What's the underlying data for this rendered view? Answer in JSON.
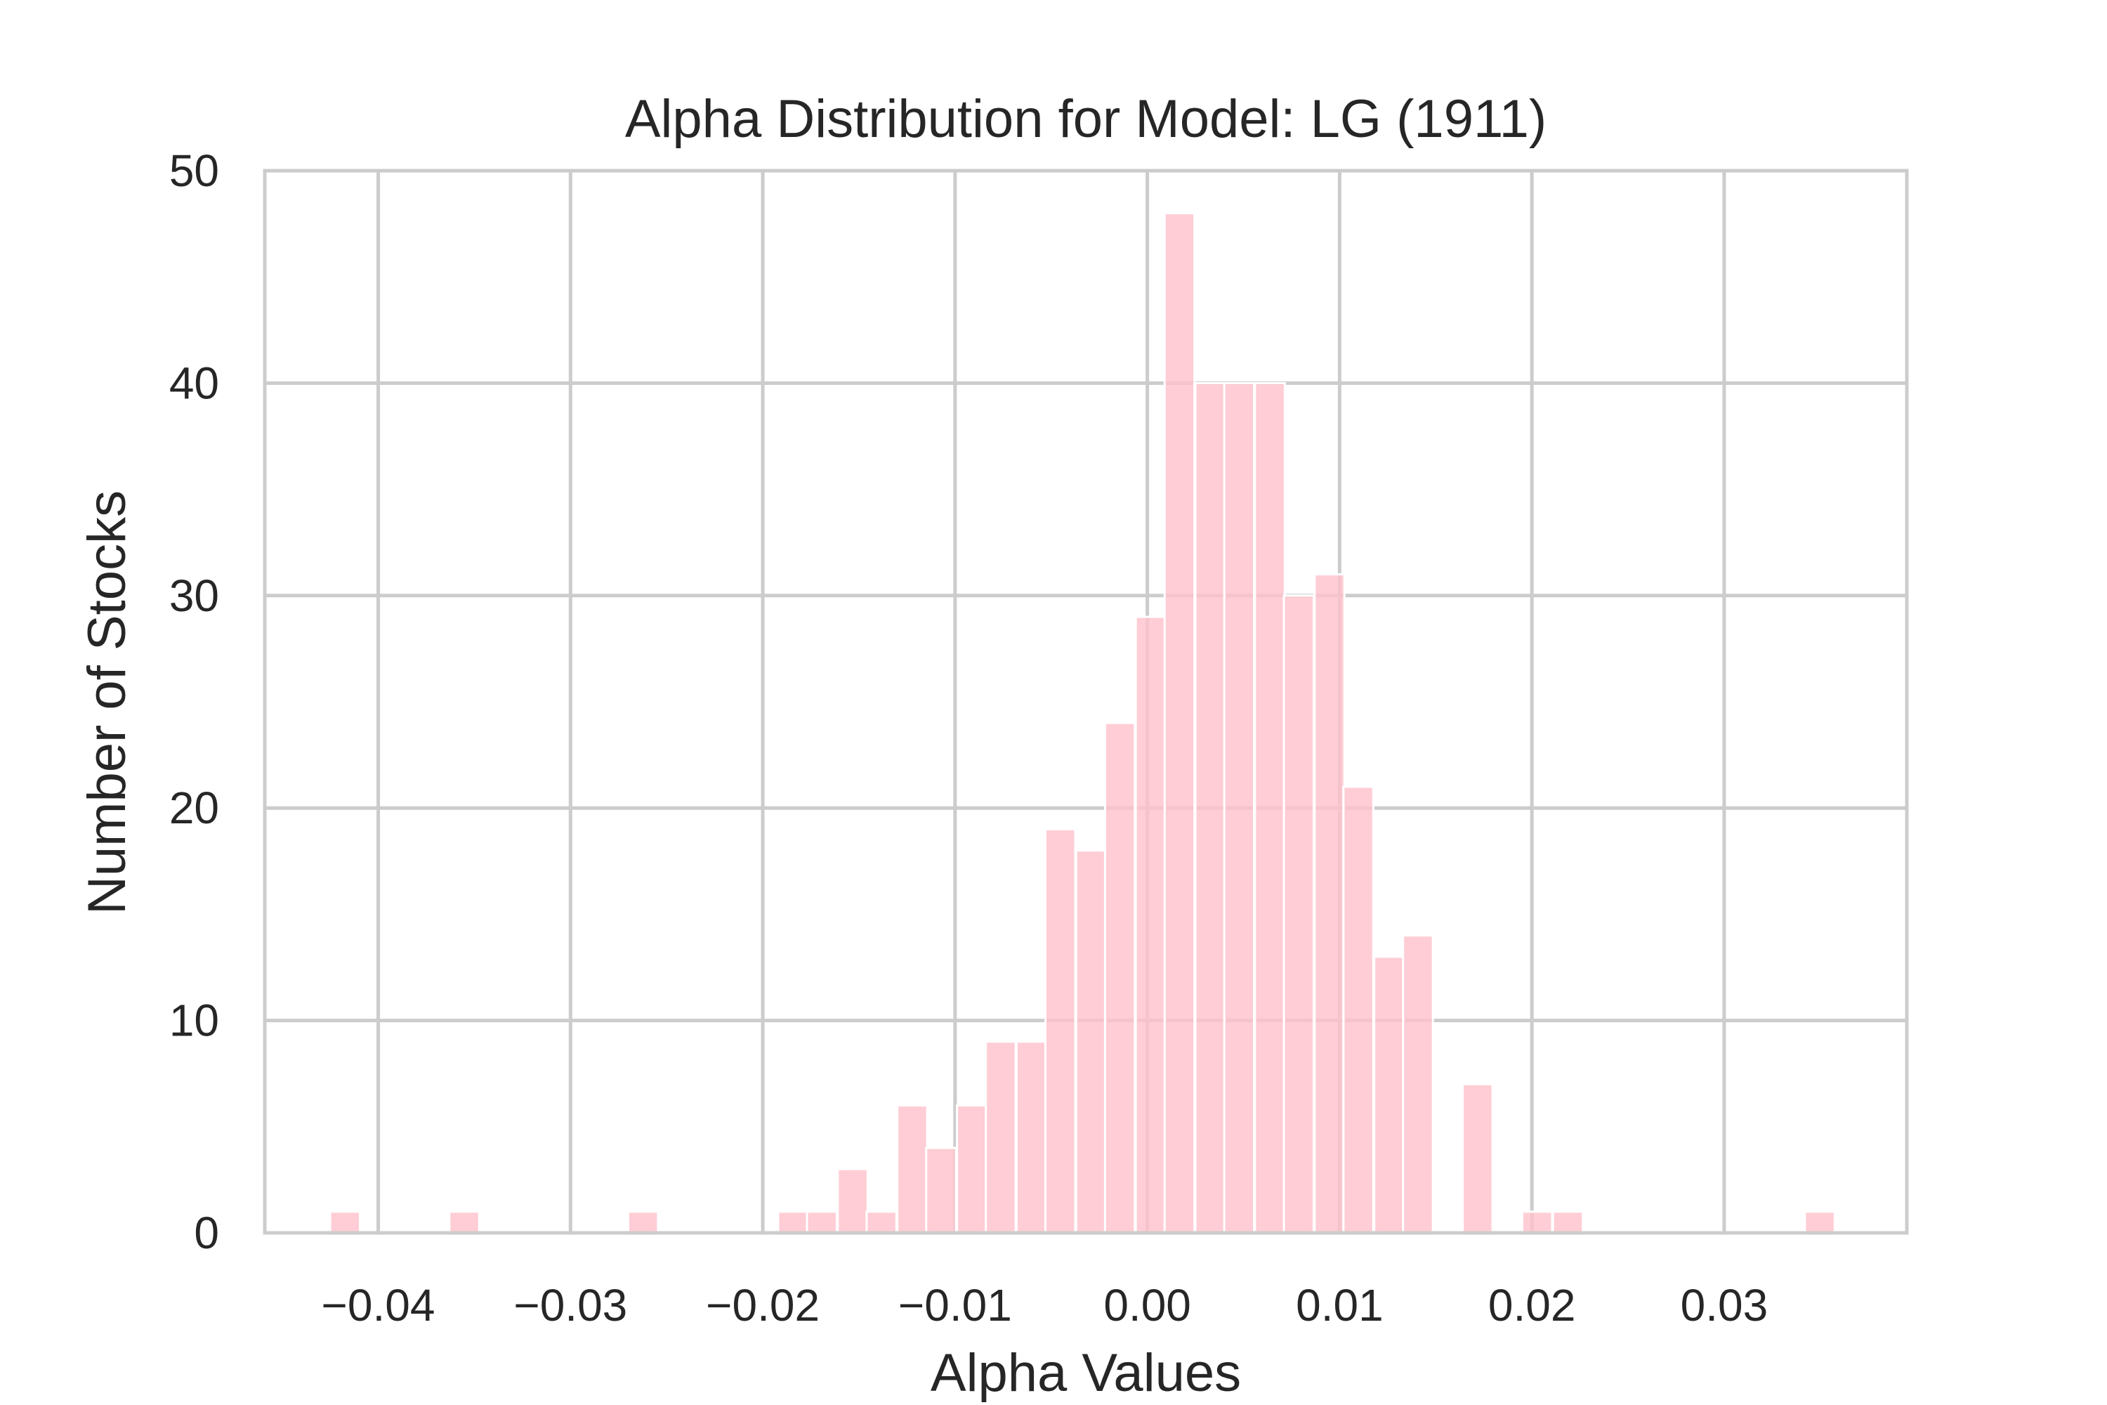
{
  "chart_data": {
    "type": "bar",
    "title": "Alpha Distribution for Model: LG (1911)",
    "xlabel": "Alpha Values",
    "ylabel": "Number of Stocks",
    "xlim": [
      -0.0459,
      0.0395
    ],
    "ylim": [
      0,
      50
    ],
    "grid": true,
    "bar_color": "#ffc0cb",
    "bin_width": 0.00155,
    "xticks": [
      {
        "value": -0.04,
        "label": "−0.04"
      },
      {
        "value": -0.03,
        "label": "−0.03"
      },
      {
        "value": -0.02,
        "label": "−0.02"
      },
      {
        "value": -0.01,
        "label": "−0.01"
      },
      {
        "value": 0.0,
        "label": "0.00"
      },
      {
        "value": 0.01,
        "label": "0.01"
      },
      {
        "value": 0.02,
        "label": "0.02"
      },
      {
        "value": 0.03,
        "label": "0.03"
      }
    ],
    "yticks": [
      {
        "value": 0,
        "label": "0"
      },
      {
        "value": 10,
        "label": "10"
      },
      {
        "value": 20,
        "label": "20"
      },
      {
        "value": 30,
        "label": "30"
      },
      {
        "value": 40,
        "label": "40"
      },
      {
        "value": 50,
        "label": "50"
      }
    ],
    "bins": [
      {
        "start": -0.0425,
        "count": 1
      },
      {
        "start": -0.0363,
        "count": 1
      },
      {
        "start": -0.027,
        "count": 1
      },
      {
        "start": -0.0192,
        "count": 1
      },
      {
        "start": -0.0177,
        "count": 1
      },
      {
        "start": -0.0161,
        "count": 3
      },
      {
        "start": -0.0146,
        "count": 1
      },
      {
        "start": -0.013,
        "count": 6
      },
      {
        "start": -0.0115,
        "count": 4
      },
      {
        "start": -0.0099,
        "count": 6
      },
      {
        "start": -0.0084,
        "count": 9
      },
      {
        "start": -0.0068,
        "count": 9
      },
      {
        "start": -0.0053,
        "count": 19
      },
      {
        "start": -0.0037,
        "count": 18
      },
      {
        "start": -0.0022,
        "count": 24
      },
      {
        "start": -0.0006,
        "count": 29
      },
      {
        "start": 0.0009,
        "count": 48
      },
      {
        "start": 0.0025,
        "count": 40
      },
      {
        "start": 0.004,
        "count": 40
      },
      {
        "start": 0.0056,
        "count": 40
      },
      {
        "start": 0.0071,
        "count": 30
      },
      {
        "start": 0.0087,
        "count": 31
      },
      {
        "start": 0.0102,
        "count": 21
      },
      {
        "start": 0.0118,
        "count": 13
      },
      {
        "start": 0.0133,
        "count": 14
      },
      {
        "start": 0.0164,
        "count": 7
      },
      {
        "start": 0.0195,
        "count": 1
      },
      {
        "start": 0.0211,
        "count": 1
      },
      {
        "start": 0.0342,
        "count": 1
      }
    ]
  }
}
